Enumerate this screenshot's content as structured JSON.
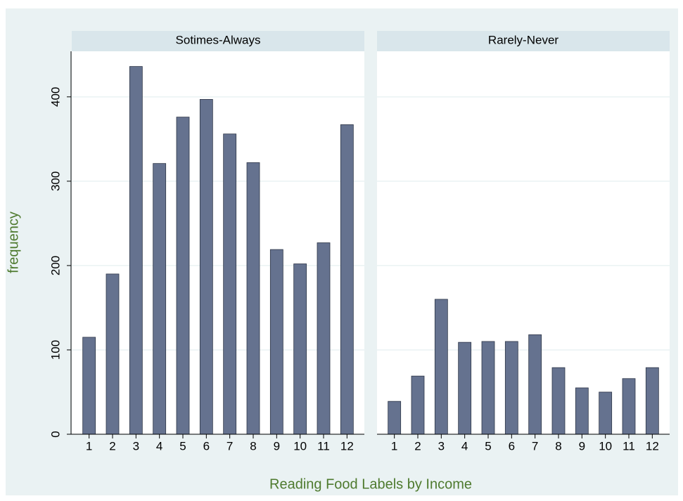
{
  "chart_data": {
    "type": "bar",
    "title": "Reading Food Labels by Income",
    "ylabel": "frequency",
    "categories": [
      1,
      2,
      3,
      4,
      5,
      6,
      7,
      8,
      9,
      10,
      11,
      12
    ],
    "color": "#65728f",
    "ylim": [
      0,
      454
    ],
    "yticks": [
      0,
      100,
      200,
      300,
      400
    ],
    "grid": true,
    "panels": [
      {
        "title": "Sotimes-Always",
        "values": [
          115,
          190,
          436,
          321,
          376,
          397,
          356,
          322,
          219,
          202,
          227,
          367
        ]
      },
      {
        "title": "Rarely-Never",
        "values": [
          39,
          69,
          160,
          109,
          110,
          110,
          118,
          79,
          55,
          50,
          66,
          79
        ]
      }
    ]
  }
}
